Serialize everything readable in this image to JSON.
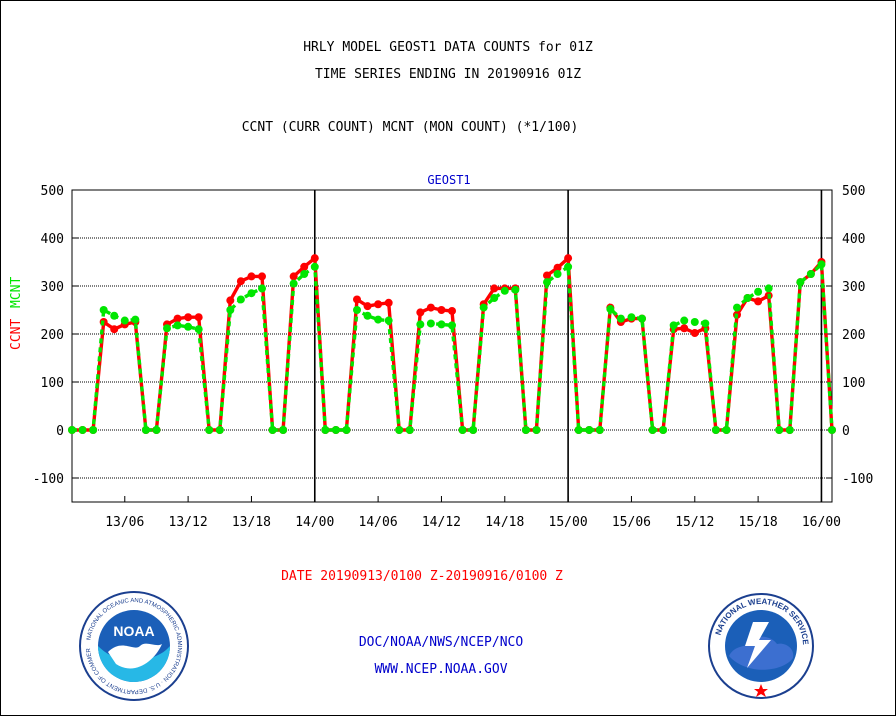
{
  "header": {
    "title_line1": "HRLY MODEL GEOST1 DATA COUNTS for 01Z",
    "title_line2": "TIME SERIES ENDING IN 20190916 01Z",
    "subtitle": "CCNT (CURR COUNT) MCNT (MON COUNT) (*1/100)"
  },
  "footer": {
    "date_range": "DATE 20190913/0100 Z-20190916/0100 Z",
    "org": "DOC/NOAA/NWS/NCEP/NCO",
    "url": "WWW.NCEP.NOAA.GOV"
  },
  "logos": {
    "noaa_text": "NOAA",
    "noaa_ring": "NATIONAL OCEANIC AND ATMOSPHERIC ADMINISTRATION · U.S. DEPARTMENT OF COMMERCE",
    "nws_ring": "NATIONAL WEATHER SERVICE"
  },
  "colors": {
    "ccnt": "#ff0000",
    "mcnt": "#00e600",
    "title": "#000000",
    "panel_label": "#0000cc",
    "date": "#ff0000",
    "link": "#0000cc"
  },
  "chart_data": {
    "type": "line",
    "title": "GEOST1",
    "ylabel_parts": [
      {
        "text": "CCNT",
        "color": "#ff0000"
      },
      {
        "text": "MCNT",
        "color": "#00e600"
      }
    ],
    "ylim": [
      -150,
      500
    ],
    "yticks": [
      -100,
      0,
      100,
      200,
      300,
      400,
      500
    ],
    "ytick_labels": [
      "-100",
      "0",
      "100",
      "200",
      "300",
      "400",
      "500"
    ],
    "xlim": [
      1,
      73
    ],
    "xticks": [
      6,
      12,
      18,
      24,
      30,
      36,
      42,
      48,
      54,
      60,
      66,
      72
    ],
    "xtick_labels": [
      "13/06",
      "13/12",
      "13/18",
      "14/00",
      "14/06",
      "14/12",
      "14/18",
      "15/00",
      "15/06",
      "15/12",
      "15/18",
      "16/00"
    ],
    "day_boundaries": [
      24,
      48,
      72
    ],
    "gridlines": [
      -100,
      0,
      100,
      200,
      300,
      400
    ],
    "x_unit": "hour since 20190913/0000 Z",
    "series": [
      {
        "name": "CCNT",
        "color": "#ff0000",
        "x": [
          1,
          2,
          3,
          4,
          5,
          6,
          7,
          8,
          9,
          10,
          11,
          12,
          13,
          14,
          15,
          16,
          17,
          18,
          19,
          20,
          21,
          22,
          23,
          24,
          25,
          26,
          27,
          28,
          29,
          30,
          31,
          32,
          33,
          34,
          35,
          36,
          37,
          38,
          39,
          40,
          41,
          42,
          43,
          44,
          45,
          46,
          47,
          48,
          49,
          50,
          51,
          52,
          53,
          54,
          55,
          56,
          57,
          58,
          59,
          60,
          61,
          62,
          63,
          64,
          65,
          66,
          67,
          68,
          69,
          70,
          71,
          72,
          73
        ],
        "values": [
          0,
          0,
          0,
          225,
          210,
          220,
          225,
          0,
          0,
          220,
          232,
          235,
          235,
          0,
          0,
          270,
          310,
          320,
          320,
          0,
          0,
          320,
          340,
          358,
          0,
          0,
          0,
          272,
          258,
          262,
          265,
          0,
          0,
          245,
          255,
          250,
          248,
          0,
          0,
          262,
          295,
          295,
          295,
          0,
          0,
          322,
          338,
          358,
          0,
          0,
          0,
          255,
          225,
          232,
          232,
          0,
          0,
          210,
          212,
          202,
          212,
          0,
          0,
          240,
          275,
          268,
          280,
          0,
          0,
          308,
          325,
          350,
          0
        ]
      },
      {
        "name": "MCNT",
        "color": "#00e600",
        "x": [
          1,
          2,
          3,
          4,
          5,
          6,
          7,
          8,
          9,
          10,
          11,
          12,
          13,
          14,
          15,
          16,
          17,
          18,
          19,
          20,
          21,
          22,
          23,
          24,
          25,
          26,
          27,
          28,
          29,
          30,
          31,
          32,
          33,
          34,
          35,
          36,
          37,
          38,
          39,
          40,
          41,
          42,
          43,
          44,
          45,
          46,
          47,
          48,
          49,
          50,
          51,
          52,
          53,
          54,
          55,
          56,
          57,
          58,
          59,
          60,
          61,
          62,
          63,
          64,
          65,
          66,
          67,
          68,
          69,
          70,
          71,
          72,
          73
        ],
        "values": [
          0,
          0,
          0,
          250,
          238,
          228,
          230,
          0,
          0,
          212,
          218,
          215,
          210,
          0,
          0,
          250,
          272,
          285,
          295,
          0,
          0,
          305,
          325,
          340,
          0,
          0,
          0,
          250,
          238,
          230,
          228,
          0,
          0,
          220,
          222,
          220,
          218,
          0,
          0,
          255,
          275,
          290,
          292,
          0,
          0,
          308,
          325,
          340,
          0,
          0,
          0,
          252,
          232,
          235,
          232,
          0,
          0,
          218,
          228,
          225,
          222,
          0,
          0,
          255,
          275,
          288,
          295,
          0,
          0,
          308,
          325,
          345,
          0
        ]
      }
    ]
  }
}
